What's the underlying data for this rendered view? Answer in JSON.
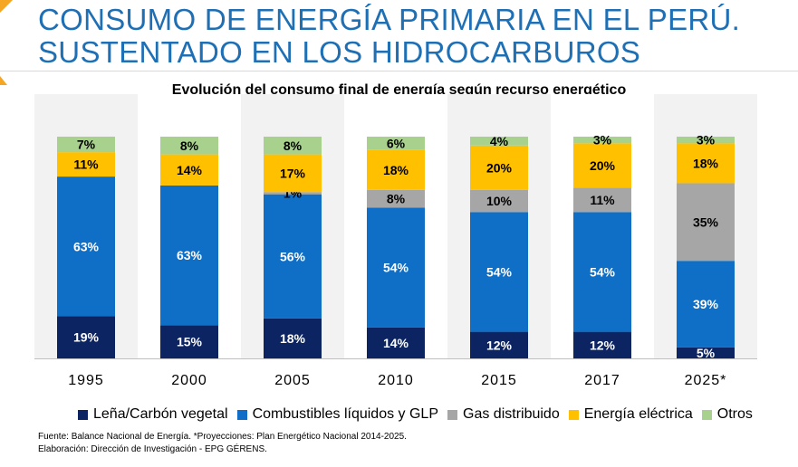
{
  "header": {
    "title_line1": "CONSUMO DE ENERGÍA PRIMARIA EN EL PERÚ.",
    "title_line2": "SUSTENTADO EN LOS HIDROCARBUROS"
  },
  "footnotes": {
    "source": "Fuente: Balance Nacional de Energía. *Proyecciones: Plan Energético Nacional 2014-2025.",
    "elaboration": "Elaboración: Dirección de Investigación - EPG GÉRENS."
  },
  "chart_data": {
    "type": "bar",
    "stacked": true,
    "title": "Evolución del consumo final de energía según recurso energético",
    "xlabel": "",
    "ylabel": "",
    "ylim": [
      0,
      100
    ],
    "categories": [
      "1995",
      "2000",
      "2005",
      "2010",
      "2015",
      "2017",
      "2025*"
    ],
    "series": [
      {
        "name": "Leña/Carbón vegetal",
        "color": "#0c2461",
        "label_color": "#ffffff",
        "values": [
          19,
          15,
          18,
          14,
          12,
          12,
          5
        ],
        "labels": [
          "19%",
          "15%",
          "18%",
          "14%",
          "12%",
          "12%",
          "5%"
        ]
      },
      {
        "name": "Combustibles líquidos y GLP",
        "color": "#0f6fc6",
        "label_color": "#ffffff",
        "values": [
          63,
          63,
          56,
          54,
          54,
          54,
          39
        ],
        "labels": [
          "63%",
          "63%",
          "56%",
          "54%",
          "54%",
          "54%",
          "39%"
        ]
      },
      {
        "name": "Gas distribuido",
        "color": "#a6a6a6",
        "label_color": "#000000",
        "values": [
          0,
          0,
          1,
          8,
          10,
          11,
          35
        ],
        "labels": [
          "",
          "",
          "1%",
          "8%",
          "10%",
          "11%",
          "35%"
        ]
      },
      {
        "name": "Energía eléctrica",
        "color": "#ffc000",
        "label_color": "#000000",
        "values": [
          11,
          14,
          17,
          18,
          20,
          20,
          18
        ],
        "labels": [
          "11%",
          "14%",
          "17%",
          "18%",
          "20%",
          "20%",
          "18%"
        ]
      },
      {
        "name": "Otros",
        "color": "#a9d18e",
        "label_color": "#000000",
        "values": [
          7,
          8,
          8,
          6,
          4,
          3,
          3
        ],
        "labels": [
          "7%",
          "8%",
          "8%",
          "6%",
          "4%",
          "3%",
          "3%"
        ]
      }
    ],
    "grid": false,
    "legend_position": "bottom"
  }
}
